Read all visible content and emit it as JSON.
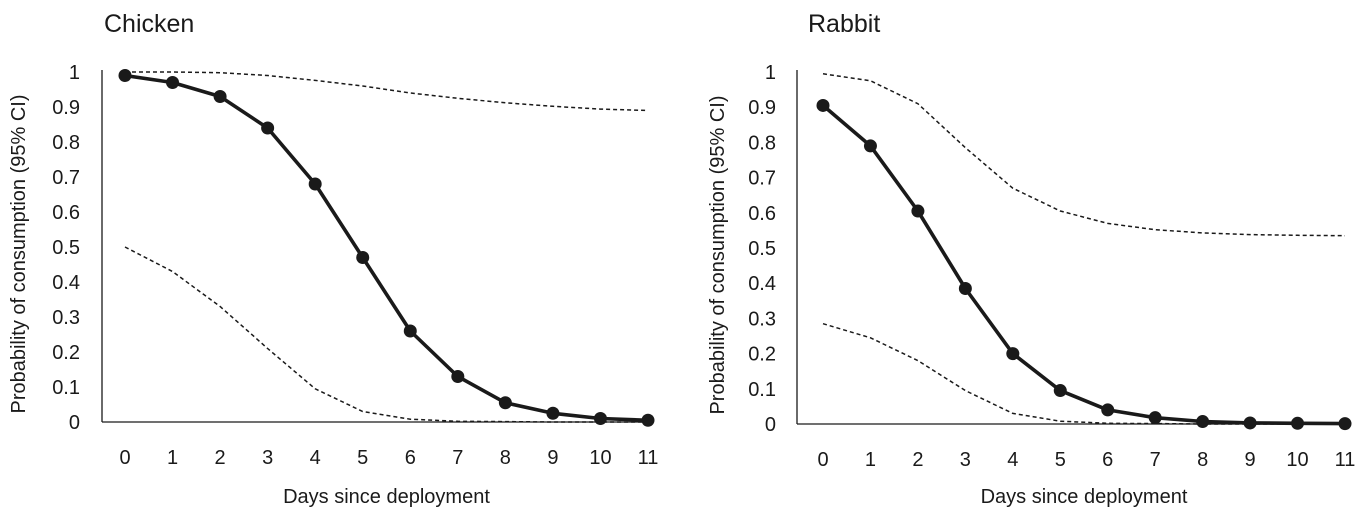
{
  "chart_data": [
    {
      "type": "line",
      "title": "Chicken",
      "xlabel": "Days since deployment",
      "ylabel": "Probability of consumption (95% CI)",
      "x": [
        0,
        1,
        2,
        3,
        4,
        5,
        6,
        7,
        8,
        9,
        10,
        11
      ],
      "xlim": [
        0,
        11
      ],
      "ylim": [
        0,
        1
      ],
      "yticks": [
        "0",
        "0.1",
        "0.2",
        "0.3",
        "0.4",
        "0.5",
        "0.6",
        "0.7",
        "0.8",
        "0.9",
        "1"
      ],
      "xticks": [
        "0",
        "1",
        "2",
        "3",
        "4",
        "5",
        "6",
        "7",
        "8",
        "9",
        "10",
        "11"
      ],
      "grid": false,
      "series": [
        {
          "role": "estimate",
          "values": [
            0.99,
            0.97,
            0.93,
            0.84,
            0.68,
            0.47,
            0.26,
            0.13,
            0.055,
            0.025,
            0.01,
            0.005
          ]
        },
        {
          "role": "upper",
          "values": [
            1.0,
            1.0,
            0.998,
            0.99,
            0.976,
            0.96,
            0.94,
            0.925,
            0.912,
            0.902,
            0.894,
            0.89
          ]
        },
        {
          "role": "lower",
          "values": [
            0.5,
            0.43,
            0.33,
            0.21,
            0.095,
            0.03,
            0.008,
            0.002,
            0.001,
            0.0,
            0.0,
            0.0
          ]
        }
      ]
    },
    {
      "type": "line",
      "title": "Rabbit",
      "xlabel": "Days since deployment",
      "ylabel": "Probability of consumption (95% CI)",
      "x": [
        0,
        1,
        2,
        3,
        4,
        5,
        6,
        7,
        8,
        9,
        10,
        11
      ],
      "xlim": [
        0,
        11
      ],
      "ylim": [
        0,
        1
      ],
      "yticks": [
        "0",
        "0.1",
        "0.2",
        "0.3",
        "0.4",
        "0.5",
        "0.6",
        "0.7",
        "0.8",
        "0.9",
        "1"
      ],
      "xticks": [
        "0",
        "1",
        "2",
        "3",
        "4",
        "5",
        "6",
        "7",
        "8",
        "9",
        "10",
        "11"
      ],
      "grid": false,
      "series": [
        {
          "role": "estimate",
          "values": [
            0.905,
            0.79,
            0.605,
            0.385,
            0.2,
            0.095,
            0.04,
            0.018,
            0.007,
            0.003,
            0.002,
            0.001
          ]
        },
        {
          "role": "upper",
          "values": [
            0.995,
            0.975,
            0.91,
            0.785,
            0.67,
            0.605,
            0.57,
            0.552,
            0.543,
            0.538,
            0.536,
            0.535
          ]
        },
        {
          "role": "lower",
          "values": [
            0.285,
            0.245,
            0.18,
            0.095,
            0.03,
            0.008,
            0.002,
            0.001,
            0.0,
            0.0,
            0.0,
            0.0
          ]
        }
      ]
    }
  ]
}
